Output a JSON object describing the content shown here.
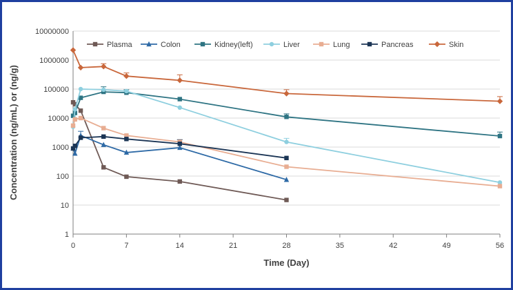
{
  "chart_data": {
    "type": "line",
    "title": "",
    "xlabel": "Time (Day)",
    "ylabel": "Concentration (ng/mL) or (ng/g)",
    "x_scale": "linear",
    "y_scale": "log",
    "xlim": [
      0,
      56
    ],
    "ylim": [
      1,
      10000000
    ],
    "x_ticks": [
      0,
      7,
      14,
      21,
      28,
      35,
      42,
      49,
      56
    ],
    "y_ticks": [
      1,
      10,
      100,
      1000,
      10000,
      100000,
      1000000,
      10000000
    ],
    "x_tick_labels": [
      "0",
      "7",
      "14",
      "21",
      "28",
      "35",
      "42",
      "49",
      "56"
    ],
    "y_tick_labels": [
      "1",
      "10",
      "100",
      "1000",
      "10000",
      "100000",
      "1000000",
      "10000000"
    ],
    "grid": "horizontal",
    "legend_position": "top",
    "series": [
      {
        "name": "Plasma",
        "color": "#6f5a56",
        "marker": "square",
        "points": [
          [
            0,
            35000
          ],
          [
            0.25,
            30000
          ],
          [
            1,
            18000
          ],
          [
            4,
            200
          ],
          [
            7,
            95
          ],
          [
            14,
            65
          ],
          [
            28,
            15
          ]
        ]
      },
      {
        "name": "Colon",
        "color": "#2e6aa6",
        "marker": "triangle",
        "points": [
          [
            0,
            900
          ],
          [
            0.25,
            600
          ],
          [
            1,
            2500
          ],
          [
            4,
            1200
          ],
          [
            7,
            650
          ],
          [
            14,
            950
          ],
          [
            28,
            75
          ]
        ]
      },
      {
        "name": "Kidney(left)",
        "color": "#2e7483",
        "marker": "square",
        "points": [
          [
            0,
            12000
          ],
          [
            0.25,
            15000
          ],
          [
            1,
            50000
          ],
          [
            4,
            80000
          ],
          [
            7,
            75000
          ],
          [
            14,
            45000
          ],
          [
            28,
            11000
          ],
          [
            56,
            2400
          ]
        ]
      },
      {
        "name": "Liver",
        "color": "#8ecfdf",
        "marker": "circle",
        "points": [
          [
            0,
            5000
          ],
          [
            0.25,
            20000
          ],
          [
            1,
            100000
          ],
          [
            4,
            95000
          ],
          [
            7,
            85000
          ],
          [
            14,
            23000
          ],
          [
            28,
            1500
          ],
          [
            56,
            60
          ]
        ]
      },
      {
        "name": "Lung",
        "color": "#e8ad92",
        "marker": "square",
        "points": [
          [
            0,
            5500
          ],
          [
            0.25,
            9000
          ],
          [
            1,
            10000
          ],
          [
            4,
            4500
          ],
          [
            7,
            2500
          ],
          [
            14,
            1500
          ],
          [
            28,
            210
          ],
          [
            56,
            45
          ]
        ]
      },
      {
        "name": "Pancreas",
        "color": "#1b3555",
        "marker": "square",
        "points": [
          [
            0,
            900
          ],
          [
            0.25,
            1100
          ],
          [
            1,
            2100
          ],
          [
            4,
            2300
          ],
          [
            7,
            1900
          ],
          [
            14,
            1300
          ],
          [
            28,
            420
          ]
        ]
      },
      {
        "name": "Skin",
        "color": "#c9673b",
        "marker": "diamond",
        "points": [
          [
            0,
            2200000
          ],
          [
            1,
            550000
          ],
          [
            4,
            600000
          ],
          [
            7,
            280000
          ],
          [
            14,
            200000
          ],
          [
            28,
            70000
          ],
          [
            56,
            38000
          ]
        ]
      }
    ],
    "error_bars": [
      {
        "series": "Skin",
        "x": 4,
        "high": 750000
      },
      {
        "series": "Skin",
        "x": 7,
        "high": 360000
      },
      {
        "series": "Skin",
        "x": 14,
        "high": 310000
      },
      {
        "series": "Skin",
        "x": 28,
        "high": 95000
      },
      {
        "series": "Skin",
        "x": 56,
        "high": 55000
      },
      {
        "series": "Kidney(left)",
        "x": 4,
        "high": 120000
      },
      {
        "series": "Kidney(left)",
        "x": 7,
        "high": 95000
      },
      {
        "series": "Kidney(left)",
        "x": 28,
        "high": 14000
      },
      {
        "series": "Kidney(left)",
        "x": 56,
        "high": 3300
      },
      {
        "series": "Liver",
        "x": 28,
        "high": 2000
      },
      {
        "series": "Colon",
        "x": 1,
        "high": 3500
      },
      {
        "series": "Colon",
        "x": 14,
        "high": 1300
      },
      {
        "series": "Pancreas",
        "x": 14,
        "high": 1800
      }
    ]
  }
}
